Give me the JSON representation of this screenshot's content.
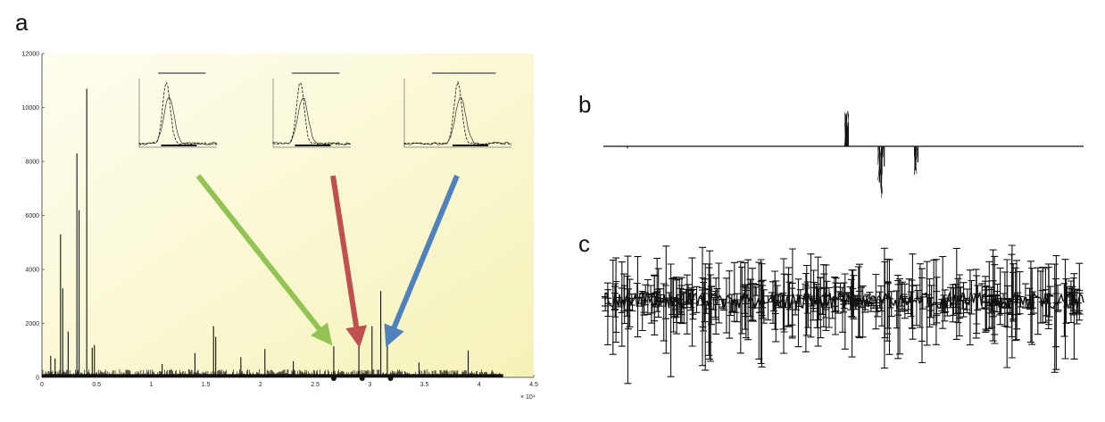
{
  "panels": {
    "a": {
      "label": "a"
    },
    "b": {
      "label": "b"
    },
    "c": {
      "label": "c"
    }
  },
  "chart_data": [
    {
      "type": "bar",
      "panel": "a",
      "xlim": [
        0,
        4.5
      ],
      "ylim": [
        0,
        12000
      ],
      "x_multiplier_label": "× 10⁴",
      "x_ticks": [
        "0",
        "0.5",
        "1",
        "1.5",
        "2",
        "2.5",
        "3",
        "3.5",
        "4",
        "4.5"
      ],
      "y_ticks": [
        "0",
        "2000",
        "4000",
        "6000",
        "8000",
        "10000",
        "12000"
      ],
      "background": [
        "#fffef0",
        "#f5f2b8"
      ],
      "peaks": [
        {
          "x": 0.17,
          "y": 5300
        },
        {
          "x": 0.19,
          "y": 3300
        },
        {
          "x": 0.24,
          "y": 1700
        },
        {
          "x": 0.32,
          "y": 8300
        },
        {
          "x": 0.34,
          "y": 6200
        },
        {
          "x": 0.41,
          "y": 10700
        },
        {
          "x": 0.46,
          "y": 1100
        },
        {
          "x": 0.48,
          "y": 1200
        },
        {
          "x": 0.08,
          "y": 800
        },
        {
          "x": 0.12,
          "y": 700
        },
        {
          "x": 1.4,
          "y": 900
        },
        {
          "x": 1.57,
          "y": 1900
        },
        {
          "x": 1.59,
          "y": 1500
        },
        {
          "x": 1.82,
          "y": 750
        },
        {
          "x": 2.04,
          "y": 1050
        },
        {
          "x": 2.67,
          "y": 1150
        },
        {
          "x": 2.9,
          "y": 1200
        },
        {
          "x": 3.02,
          "y": 1900
        },
        {
          "x": 3.1,
          "y": 3200
        },
        {
          "x": 3.16,
          "y": 1350
        },
        {
          "x": 3.9,
          "y": 1000
        },
        {
          "x": 1.1,
          "y": 500
        },
        {
          "x": 2.3,
          "y": 600
        },
        {
          "x": 3.45,
          "y": 550
        }
      ],
      "markers_x": [
        2.67,
        2.93,
        3.19
      ],
      "insets": [
        {
          "title": "",
          "color_arrow": "#92c353"
        },
        {
          "title": "",
          "color_arrow": "#c0504d"
        },
        {
          "title": "",
          "color_arrow": "#4f81bd"
        }
      ]
    },
    {
      "type": "bar",
      "panel": "b",
      "description_axis": "horizontal baseline with up and down stems",
      "stems": [
        {
          "x": 0.05,
          "y": -0.05
        },
        {
          "x": 0.505,
          "y": 0.8
        },
        {
          "x": 0.51,
          "y": 0.6
        },
        {
          "x": 0.508,
          "y": 0.5
        },
        {
          "x": 0.575,
          "y": -0.9
        },
        {
          "x": 0.58,
          "y": -0.7
        },
        {
          "x": 0.585,
          "y": -0.5
        },
        {
          "x": 0.65,
          "y": -0.6
        },
        {
          "x": 0.655,
          "y": -0.4
        }
      ]
    },
    {
      "type": "scatter",
      "panel": "c",
      "description_axis": "dense error-bar series"
    }
  ]
}
